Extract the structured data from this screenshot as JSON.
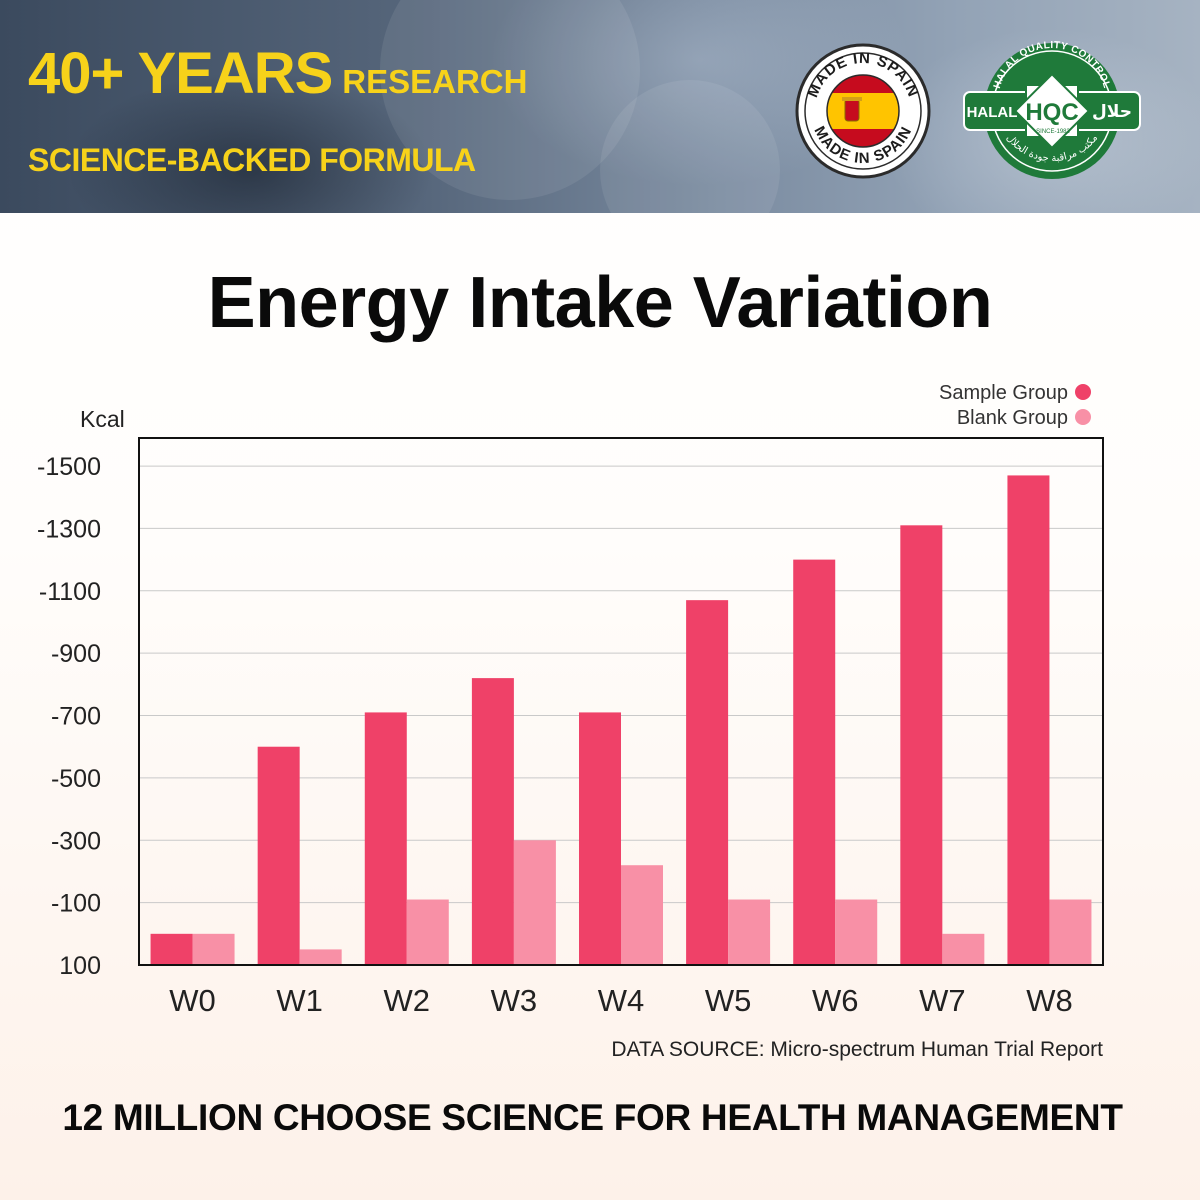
{
  "header": {
    "headline_big": "40+ YEARS",
    "headline_small": "RESEARCH",
    "subline": "SCIENCE-BACKED FORMULA",
    "accent_color": "#f7d21a"
  },
  "badges": {
    "spain": {
      "text_top": "MADE IN SPAIN",
      "text_bottom": "MADE IN SPAIN",
      "colors": [
        "#c60b1e",
        "#ffc400"
      ]
    },
    "hqc": {
      "top_text": "HALAL QUALITY CONTROL",
      "left_text": "HALAL",
      "center_text": "HQC",
      "since_text": "-SINCE-1983",
      "right_text": "حلال",
      "bottom_text": "مكتب مراقبة جودة الحلال",
      "color": "#1f7a3a"
    }
  },
  "chart_data": {
    "type": "bar",
    "title": "Energy Intake Variation",
    "ylabel": "Kcal",
    "xlabel": "",
    "categories": [
      "W0",
      "W1",
      "W2",
      "W3",
      "W4",
      "W5",
      "W6",
      "W7",
      "W8"
    ],
    "series": [
      {
        "name": "Sample Group",
        "color": "#ef4168",
        "values": [
          0,
          -600,
          -710,
          -820,
          -710,
          -1070,
          -1200,
          -1310,
          -1470
        ]
      },
      {
        "name": "Blank Group",
        "color": "#f890a6",
        "values": [
          0,
          50,
          -110,
          -300,
          -220,
          -110,
          -110,
          0,
          -110
        ]
      }
    ],
    "yticks": [
      100,
      -100,
      -300,
      -500,
      -700,
      -900,
      -1100,
      -1300,
      -1500
    ],
    "ytick_labels": [
      "100",
      "-100",
      "-300",
      "-500",
      "-700",
      "-900",
      "-1100",
      "-1300",
      "-1500"
    ],
    "ylim": [
      100,
      -1590
    ],
    "grid": true,
    "legend_position": "top-right"
  },
  "source_note": "DATA SOURCE: Micro-spectrum Human Trial Report",
  "footer": "12 MILLION CHOOSE SCIENCE FOR HEALTH MANAGEMENT"
}
